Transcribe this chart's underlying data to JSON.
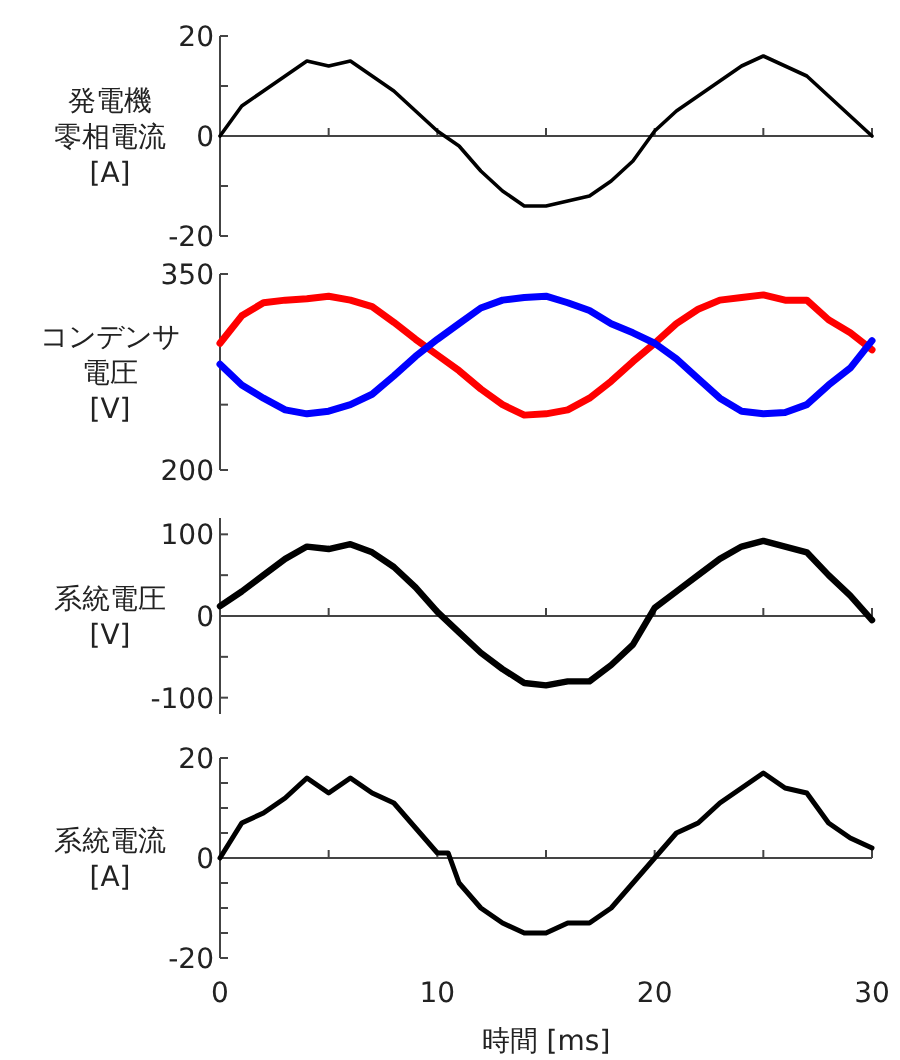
{
  "chart_data": [
    {
      "type": "line",
      "ylabel": "発電機零相電流\n[A]",
      "x": [
        0,
        1,
        2,
        3,
        4,
        5,
        6,
        7,
        8,
        9,
        10,
        11,
        12,
        13,
        14,
        15,
        16,
        17,
        18,
        19,
        20,
        21,
        22,
        23,
        24,
        25,
        26,
        27,
        28,
        29,
        30
      ],
      "xlim": [
        0,
        30
      ],
      "xticks": [
        {
          "value": 0,
          "label": null
        },
        {
          "value": 5,
          "label": null
        },
        {
          "value": 10,
          "label": null
        },
        {
          "value": 15,
          "label": null
        },
        {
          "value": 20,
          "label": null
        },
        {
          "value": 25,
          "label": null
        },
        {
          "value": 30,
          "label": null
        }
      ],
      "ylim": [
        -20,
        20
      ],
      "yticks": [
        -20,
        {
          "value": -10,
          "label": null
        },
        0,
        {
          "value": 10,
          "label": null
        },
        20
      ],
      "tick_labels": "y",
      "series": [
        {
          "color": "#000000",
          "values": [
            0,
            6,
            9,
            12,
            15,
            14,
            15,
            12,
            9,
            5,
            1,
            -2,
            -7,
            -11,
            -14,
            -14,
            -13,
            -12,
            -9,
            -5,
            1,
            5,
            8,
            11,
            14,
            16,
            14,
            12,
            8,
            4,
            0
          ]
        }
      ]
    },
    {
      "type": "line",
      "ylabel": "コンデンサ電圧\n[V]",
      "x": [
        0,
        1,
        2,
        3,
        4,
        5,
        6,
        7,
        8,
        9,
        10,
        11,
        12,
        13,
        14,
        15,
        16,
        17,
        18,
        19,
        20,
        21,
        22,
        23,
        24,
        25,
        26,
        27,
        28,
        29,
        30
      ],
      "xlim": [
        0,
        30
      ],
      "ylim": [
        200,
        350
      ],
      "yticks": [
        200,
        {
          "value": 250,
          "label": null
        },
        350
      ],
      "tick_labels": "y",
      "series": [
        {
          "color": "#ff0000",
          "values": [
            297,
            318,
            328,
            330,
            331,
            333,
            330,
            325,
            313,
            300,
            288,
            276,
            262,
            250,
            242,
            243,
            246,
            255,
            268,
            283,
            297,
            312,
            323,
            330,
            332,
            334,
            330,
            330,
            315,
            305,
            292
          ]
        },
        {
          "color": "#0000ff",
          "values": [
            281,
            265,
            255,
            246,
            243,
            245,
            250,
            258,
            272,
            287,
            300,
            312,
            324,
            330,
            332,
            333,
            328,
            322,
            312,
            305,
            297,
            285,
            270,
            255,
            245,
            243,
            244,
            250,
            265,
            278,
            299
          ]
        }
      ]
    },
    {
      "type": "line",
      "ylabel": "系統電圧\n[V]",
      "x": [
        0,
        1,
        2,
        3,
        4,
        5,
        6,
        7,
        8,
        9,
        10,
        11,
        12,
        13,
        14,
        15,
        16,
        17,
        18,
        19,
        20,
        21,
        22,
        23,
        24,
        25,
        26,
        27,
        28,
        29,
        30
      ],
      "xlim": [
        0,
        30
      ],
      "xticks": [
        {
          "value": 0,
          "label": null
        },
        {
          "value": 5,
          "label": null
        },
        {
          "value": 10,
          "label": null
        },
        {
          "value": 15,
          "label": null
        },
        {
          "value": 20,
          "label": null
        },
        {
          "value": 25,
          "label": null
        },
        {
          "value": 30,
          "label": null
        }
      ],
      "ylim": [
        -120,
        120
      ],
      "yticks": [
        -100,
        {
          "value": -50,
          "label": null
        },
        0,
        {
          "value": 50,
          "label": null
        },
        100
      ],
      "tick_labels": "y",
      "series": [
        {
          "color": "#000000",
          "values": [
            12,
            30,
            50,
            70,
            85,
            82,
            88,
            78,
            60,
            35,
            5,
            -20,
            -45,
            -65,
            -82,
            -85,
            -80,
            -80,
            -60,
            -35,
            10,
            30,
            50,
            70,
            85,
            92,
            85,
            78,
            50,
            25,
            -5
          ]
        }
      ]
    },
    {
      "type": "line",
      "ylabel": "系統電流\n[A]",
      "xlabel": "時間 [ms]",
      "x": [
        0,
        1,
        2,
        3,
        4,
        5,
        6,
        7,
        8,
        9,
        10,
        10.5,
        11,
        12,
        13,
        14,
        15,
        16,
        17,
        18,
        19,
        20,
        21,
        22,
        23,
        24,
        25,
        26,
        27,
        28,
        29,
        30
      ],
      "xlim": [
        0,
        30
      ],
      "xticks": [
        0,
        {
          "value": 5,
          "label": null
        },
        10,
        {
          "value": 15,
          "label": null
        },
        20,
        {
          "value": 25,
          "label": null
        },
        30
      ],
      "ylim": [
        -20,
        20
      ],
      "yticks": [
        -20,
        {
          "value": -15,
          "label": null
        },
        {
          "value": -10,
          "label": null
        },
        {
          "value": -5,
          "label": null
        },
        0,
        {
          "value": 5,
          "label": null
        },
        {
          "value": 10,
          "label": null
        },
        {
          "value": 15,
          "label": null
        },
        20
      ],
      "series": [
        {
          "color": "#000000",
          "values": [
            0,
            7,
            9,
            12,
            16,
            13,
            16,
            13,
            11,
            6,
            1,
            1,
            -5,
            -10,
            -13,
            -15,
            -15,
            -13,
            -13,
            -10,
            -5,
            0,
            5,
            7,
            11,
            14,
            17,
            14,
            13,
            7,
            4,
            2
          ]
        }
      ]
    }
  ]
}
